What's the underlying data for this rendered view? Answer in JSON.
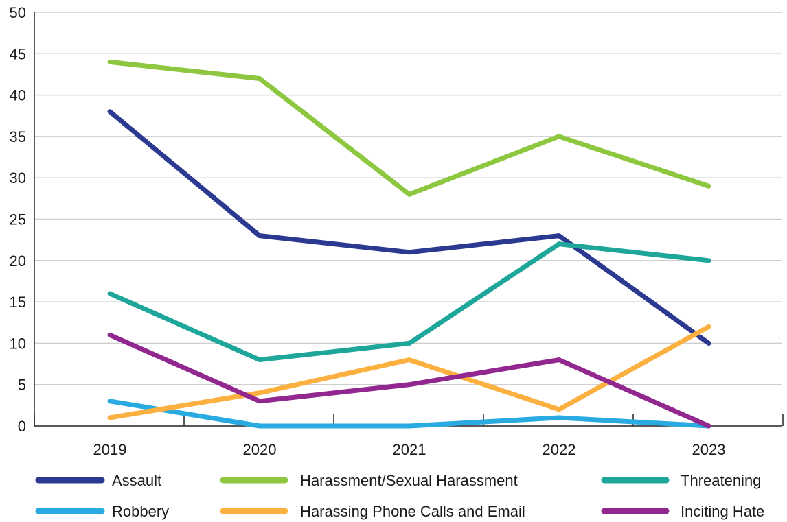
{
  "chart_data": {
    "type": "line",
    "title": "",
    "xlabel": "",
    "ylabel": "",
    "ylim": [
      0,
      50
    ],
    "yticks": [
      0,
      5,
      10,
      15,
      20,
      25,
      30,
      35,
      40,
      45,
      50
    ],
    "categories": [
      "2019",
      "2020",
      "2021",
      "2022",
      "2023"
    ],
    "grid": "horizontal",
    "legend_position": "bottom",
    "series": [
      {
        "name": "Assault",
        "color": "#2b3990",
        "values": [
          38,
          23,
          21,
          23,
          10
        ]
      },
      {
        "name": "Harassment/Sexual Harassment",
        "color": "#8dc63f",
        "values": [
          44,
          42,
          28,
          35,
          29
        ]
      },
      {
        "name": "Threatening",
        "color": "#1ea69a",
        "values": [
          16,
          8,
          10,
          22,
          20
        ]
      },
      {
        "name": "Robbery",
        "color": "#29abe2",
        "values": [
          3,
          0,
          0,
          1,
          0
        ]
      },
      {
        "name": "Harassing Phone Calls and Email",
        "color": "#fbb040",
        "values": [
          1,
          4,
          8,
          2,
          12
        ]
      },
      {
        "name": "Inciting Hate",
        "color": "#92278f",
        "values": [
          11,
          3,
          5,
          8,
          0
        ]
      }
    ]
  }
}
